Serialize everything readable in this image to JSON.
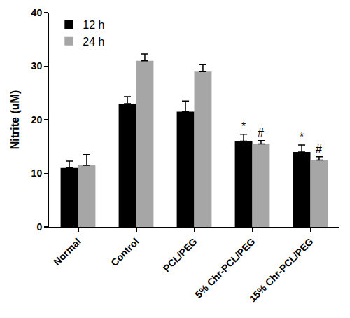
{
  "chart_data": {
    "type": "bar",
    "y_label": "Nitrite (uM)",
    "categories": [
      "Normal",
      "Control",
      "PCL/PEG",
      "5% Chr-PCL/PEG",
      "15% Chr-PCL/PEG"
    ],
    "series": [
      {
        "name": "12 h",
        "color": "#000000",
        "values": [
          11,
          23,
          21.5,
          16,
          14
        ],
        "errors": [
          1.3,
          1.3,
          2.0,
          1.3,
          1.3
        ]
      },
      {
        "name": "24 h",
        "color": "#a6a6a6",
        "values": [
          11.5,
          31,
          29,
          15.5,
          12.5
        ],
        "errors": [
          2.0,
          1.3,
          1.3,
          0.6,
          0.6
        ]
      }
    ],
    "annotations": [
      {
        "text": "*",
        "category": "5% Chr-PCL/PEG",
        "series": "12 h"
      },
      {
        "text": "*",
        "category": "15% Chr-PCL/PEG",
        "series": "12 h"
      },
      {
        "text": "#",
        "category": "5% Chr-PCL/PEG",
        "series": "24 h"
      },
      {
        "text": "#",
        "category": "15% Chr-PCL/PEG",
        "series": "24 h"
      }
    ],
    "ylim": [
      0,
      40
    ],
    "yticks": [
      0,
      10,
      20,
      30,
      40
    ],
    "grid": false,
    "legend": "top left"
  }
}
